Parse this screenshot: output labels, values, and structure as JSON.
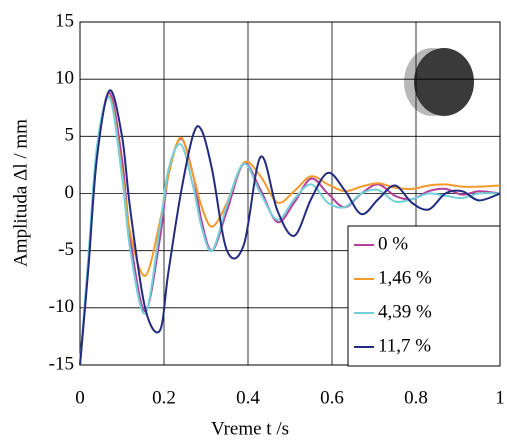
{
  "chart_data": {
    "type": "line",
    "xlabel": "Vreme t /s",
    "ylabel": "Amplituda Δl / mm",
    "x": [
      0,
      0.02,
      0.04,
      0.07,
      0.1,
      0.12,
      0.155,
      0.19,
      0.21,
      0.24,
      0.27,
      0.29,
      0.315,
      0.35,
      0.39,
      0.43,
      0.47,
      0.51,
      0.55,
      0.59,
      0.63,
      0.67,
      0.71,
      0.75,
      0.79,
      0.83,
      0.87,
      0.91,
      0.95,
      1
    ],
    "series": [
      {
        "name": "0 %",
        "color": "#b5409c",
        "values": [
          -15,
          -6,
          3.5,
          8.8,
          3,
          -4,
          -10.3,
          -4,
          1.5,
          4.8,
          1.5,
          -2.5,
          -5,
          -1.5,
          2.6,
          0.3,
          -2.5,
          -0.8,
          1.3,
          0,
          -1.2,
          0,
          0.8,
          -0.2,
          -0.5,
          0.2,
          0.4,
          -0.1,
          0.2,
          0
        ]
      },
      {
        "name": "1,46 %",
        "color": "#f49a2c",
        "values": [
          -15,
          -6,
          3.5,
          8.5,
          2,
          -3.5,
          -7.2,
          -2.5,
          1.5,
          4.9,
          1.5,
          -1.2,
          -2.9,
          -0.8,
          2.7,
          1.5,
          -0.8,
          0.2,
          1.5,
          0.8,
          0.2,
          0.6,
          0.9,
          0.5,
          0.4,
          0.7,
          0.8,
          0.6,
          0.6,
          0.7
        ]
      },
      {
        "name": "4,39 %",
        "color": "#72d0d8",
        "values": [
          -15,
          -5.5,
          4,
          8.4,
          1.5,
          -5,
          -10.5,
          -3,
          2,
          4.3,
          0.5,
          -3,
          -5,
          -1,
          2.6,
          0,
          -2.3,
          -0.5,
          0.8,
          -0.8,
          -1.2,
          0,
          0.3,
          -0.7,
          -0.5,
          0,
          -0.2,
          -0.4,
          0,
          0
        ]
      },
      {
        "name": "11,7 %",
        "color": "#222b80",
        "values": [
          -15,
          -6.5,
          3,
          9,
          5,
          -1.5,
          -10,
          -12,
          -7,
          0,
          5.2,
          5.5,
          2,
          -5,
          -4.5,
          3.2,
          -1.5,
          -3.7,
          -0.5,
          1.8,
          0.3,
          -1.8,
          -0.5,
          0.7,
          -0.8,
          -1.4,
          0,
          0.2,
          -0.6,
          0
        ]
      }
    ],
    "xlim": [
      0,
      1
    ],
    "xticks": [
      0,
      0.2,
      0.4,
      0.6,
      0.8,
      1
    ],
    "ylim": [
      -15,
      15
    ],
    "yticks": [
      -15,
      -10,
      -5,
      0,
      5,
      10,
      15
    ],
    "grid": true,
    "legend": "lower right"
  }
}
